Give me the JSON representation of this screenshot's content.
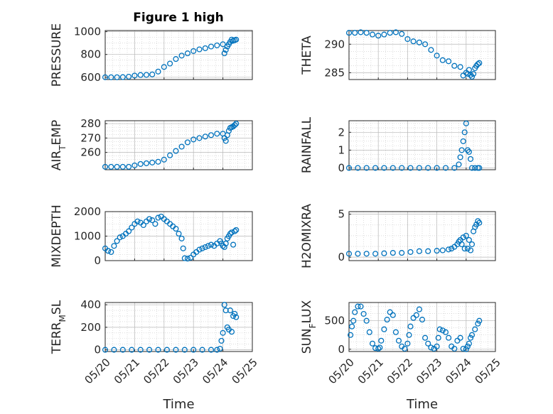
{
  "chart_data": [
    {
      "type": "scatter",
      "title": "Figure 1 high",
      "ylabel": "PRESSURE",
      "xlabel": "",
      "xlim": [
        0,
        5
      ],
      "x_tick_labels": [],
      "ylim": [
        580,
        1010
      ],
      "yticks": [
        600,
        800,
        1000
      ],
      "ytick_labels": [
        "600",
        "800",
        "1000"
      ],
      "grid": true,
      "series": [
        {
          "color": "#0072BD",
          "x": [
            0,
            0.2,
            0.4,
            0.6,
            0.8,
            1.0,
            1.2,
            1.4,
            1.6,
            1.8,
            2.0,
            2.2,
            2.4,
            2.6,
            2.8,
            3.0,
            3.2,
            3.4,
            3.6,
            3.8,
            4.0,
            4.05,
            4.1,
            4.15,
            4.2,
            4.25,
            4.3,
            4.35,
            4.4,
            4.45
          ],
          "y": [
            600,
            600,
            600,
            601,
            605,
            615,
            620,
            621,
            625,
            650,
            690,
            720,
            760,
            790,
            810,
            830,
            845,
            855,
            870,
            880,
            890,
            810,
            840,
            870,
            890,
            910,
            930,
            920,
            925,
            930
          ]
        }
      ]
    },
    {
      "type": "scatter",
      "title": "",
      "ylabel": "THETA",
      "xlabel": "",
      "xlim": [
        0,
        5
      ],
      "x_tick_labels": [],
      "ylim": [
        283.8,
        292.4
      ],
      "yticks": [
        285,
        290
      ],
      "ytick_labels": [
        "285",
        "290"
      ],
      "grid": true,
      "series": [
        {
          "color": "#0072BD",
          "x": [
            0,
            0.2,
            0.4,
            0.6,
            0.8,
            1.0,
            1.2,
            1.4,
            1.6,
            1.8,
            2.0,
            2.2,
            2.4,
            2.6,
            2.8,
            3.0,
            3.2,
            3.4,
            3.6,
            3.8,
            3.9,
            4.0,
            4.05,
            4.1,
            4.15,
            4.2,
            4.25,
            4.3,
            4.35,
            4.4,
            4.45
          ],
          "y": [
            292.0,
            292.0,
            292.1,
            292.0,
            291.7,
            291.5,
            291.7,
            292.0,
            292.1,
            291.8,
            290.9,
            290.5,
            290.3,
            290.0,
            289.0,
            288.0,
            287.2,
            287.0,
            286.2,
            286.0,
            284.5,
            285.0,
            284.8,
            285.5,
            284.6,
            284.3,
            284.8,
            285.8,
            286.2,
            286.5,
            286.7
          ]
        }
      ]
    },
    {
      "type": "scatter",
      "title": "",
      "ylabel": "AIR_TEMP",
      "xlabel": "",
      "xlim": [
        0,
        5
      ],
      "x_tick_labels": [],
      "ylim": [
        248,
        282
      ],
      "yticks": [
        260,
        270,
        280
      ],
      "ytick_labels": [
        "260",
        "270",
        "280"
      ],
      "grid": true,
      "series": [
        {
          "color": "#0072BD",
          "x": [
            0,
            0.2,
            0.4,
            0.6,
            0.8,
            1.0,
            1.2,
            1.4,
            1.6,
            1.8,
            2.0,
            2.2,
            2.4,
            2.6,
            2.8,
            3.0,
            3.2,
            3.4,
            3.6,
            3.8,
            4.0,
            4.05,
            4.1,
            4.15,
            4.2,
            4.25,
            4.3,
            4.35,
            4.4,
            4.45
          ],
          "y": [
            250,
            250,
            250,
            250,
            250,
            251,
            252,
            252.5,
            253,
            253.5,
            255,
            258,
            261,
            264,
            267,
            269,
            270,
            271,
            272,
            273,
            273,
            270,
            268,
            272,
            275,
            277,
            277.5,
            278,
            279,
            280
          ]
        }
      ]
    },
    {
      "type": "scatter",
      "title": "",
      "ylabel": "RAINFALL",
      "xlabel": "",
      "xlim": [
        0,
        5
      ],
      "x_tick_labels": [],
      "ylim": [
        -0.1,
        2.65
      ],
      "yticks": [
        0,
        1,
        2
      ],
      "ytick_labels": [
        "0",
        "1",
        "2"
      ],
      "grid": true,
      "series": [
        {
          "color": "#0072BD",
          "x": [
            0,
            0.3,
            0.6,
            0.9,
            1.2,
            1.5,
            1.8,
            2.1,
            2.4,
            2.7,
            3.0,
            3.3,
            3.6,
            3.75,
            3.8,
            3.85,
            3.9,
            3.95,
            4.0,
            4.05,
            4.1,
            4.15,
            4.2,
            4.3,
            4.4,
            4.45
          ],
          "y": [
            0,
            0,
            0,
            0,
            0,
            0,
            0,
            0,
            0,
            0,
            0,
            0,
            0,
            0.2,
            0.6,
            1.0,
            1.5,
            2.0,
            2.5,
            1.0,
            0.9,
            0.5,
            0,
            0,
            0,
            0
          ]
        }
      ]
    },
    {
      "type": "scatter",
      "title": "",
      "ylabel": "MIXDEPTH",
      "xlabel": "",
      "xlim": [
        0,
        5
      ],
      "x_tick_labels": [],
      "ylim": [
        0,
        2000
      ],
      "yticks": [
        0,
        1000,
        2000
      ],
      "ytick_labels": [
        "0",
        "1000",
        "2000"
      ],
      "grid": true,
      "series": [
        {
          "color": "#0072BD",
          "x": [
            0,
            0.1,
            0.2,
            0.3,
            0.4,
            0.5,
            0.6,
            0.7,
            0.8,
            0.9,
            1.0,
            1.1,
            1.2,
            1.3,
            1.4,
            1.5,
            1.6,
            1.7,
            1.8,
            1.9,
            2.0,
            2.1,
            2.2,
            2.3,
            2.4,
            2.5,
            2.6,
            2.65,
            2.7,
            2.8,
            2.9,
            3.0,
            3.1,
            3.2,
            3.3,
            3.4,
            3.5,
            3.6,
            3.7,
            3.8,
            3.9,
            3.95,
            4.0,
            4.05,
            4.1,
            4.15,
            4.2,
            4.25,
            4.3,
            4.35,
            4.4,
            4.45
          ],
          "y": [
            500,
            400,
            350,
            600,
            800,
            950,
            1000,
            1100,
            1200,
            1350,
            1500,
            1600,
            1550,
            1450,
            1600,
            1700,
            1650,
            1500,
            1750,
            1800,
            1700,
            1600,
            1500,
            1400,
            1300,
            1100,
            900,
            500,
            100,
            80,
            120,
            250,
            350,
            450,
            500,
            550,
            600,
            650,
            600,
            700,
            800,
            700,
            600,
            550,
            700,
            900,
            1000,
            1100,
            1150,
            650,
            1200,
            1250
          ]
        }
      ]
    },
    {
      "type": "scatter",
      "title": "",
      "ylabel": "H2OMIXRA",
      "xlabel": "",
      "xlim": [
        0,
        5
      ],
      "x_tick_labels": [],
      "ylim": [
        -0.4,
        5.3
      ],
      "yticks": [
        0,
        5
      ],
      "ytick_labels": [
        "0",
        "5"
      ],
      "grid": true,
      "series": [
        {
          "color": "#0072BD",
          "x": [
            0,
            0.3,
            0.6,
            0.9,
            1.2,
            1.5,
            1.8,
            2.1,
            2.4,
            2.7,
            3.0,
            3.2,
            3.4,
            3.5,
            3.6,
            3.7,
            3.75,
            3.8,
            3.85,
            3.9,
            3.95,
            4.0,
            4.05,
            4.1,
            4.15,
            4.2,
            4.25,
            4.3,
            4.35,
            4.4,
            4.45
          ],
          "y": [
            0.4,
            0.4,
            0.4,
            0.4,
            0.45,
            0.5,
            0.5,
            0.6,
            0.7,
            0.7,
            0.75,
            0.8,
            0.9,
            1.0,
            1.2,
            1.5,
            1.8,
            2.0,
            1.5,
            2.3,
            1.0,
            2.5,
            1.0,
            2.0,
            0.8,
            1.5,
            3.0,
            3.5,
            3.8,
            4.2,
            4.0
          ]
        }
      ]
    },
    {
      "type": "scatter",
      "title": "",
      "ylabel": "TERR_MSL",
      "xlabel": "Time",
      "xlim": [
        0,
        5
      ],
      "x_tick_labels": [
        "05/20",
        "05/21",
        "05/22",
        "05/23",
        "05/24",
        "05/25"
      ],
      "ylim": [
        -15,
        420
      ],
      "yticks": [
        0,
        200,
        400
      ],
      "ytick_labels": [
        "0",
        "200",
        "400"
      ],
      "grid": true,
      "series": [
        {
          "color": "#0072BD",
          "x": [
            0,
            0.3,
            0.6,
            0.9,
            1.2,
            1.5,
            1.8,
            2.1,
            2.4,
            2.7,
            3.0,
            3.3,
            3.6,
            3.8,
            3.9,
            3.95,
            4.0,
            4.05,
            4.1,
            4.15,
            4.2,
            4.25,
            4.3,
            4.35,
            4.4,
            4.45
          ],
          "y": [
            0,
            0,
            0,
            0,
            0,
            0,
            0,
            0,
            0,
            0,
            0,
            0,
            0,
            0,
            10,
            80,
            150,
            400,
            350,
            200,
            180,
            350,
            160,
            300,
            320,
            290
          ]
        }
      ]
    },
    {
      "type": "scatter",
      "title": "",
      "ylabel": "SUN_FLUX",
      "xlabel": "Time",
      "xlim": [
        0,
        5
      ],
      "x_tick_labels": [
        "05/20",
        "05/21",
        "05/22",
        "05/23",
        "05/24",
        "05/25"
      ],
      "ylim": [
        -40,
        820
      ],
      "yticks": [
        0,
        500
      ],
      "ytick_labels": [
        "0",
        "500"
      ],
      "grid": true,
      "series": [
        {
          "color": "#0072BD",
          "x": [
            0.05,
            0.1,
            0.15,
            0.2,
            0.3,
            0.4,
            0.5,
            0.6,
            0.7,
            0.8,
            0.9,
            1.0,
            1.05,
            1.1,
            1.2,
            1.3,
            1.4,
            1.5,
            1.6,
            1.7,
            1.8,
            1.9,
            2.0,
            2.05,
            2.1,
            2.2,
            2.3,
            2.4,
            2.5,
            2.6,
            2.7,
            2.8,
            2.9,
            3.0,
            3.05,
            3.1,
            3.2,
            3.3,
            3.4,
            3.5,
            3.6,
            3.7,
            3.8,
            3.9,
            4.0,
            4.05,
            4.1,
            4.15,
            4.2,
            4.3,
            4.4,
            4.45
          ],
          "y": [
            250,
            400,
            500,
            650,
            750,
            750,
            620,
            500,
            300,
            100,
            20,
            10,
            30,
            150,
            350,
            520,
            650,
            600,
            300,
            150,
            50,
            10,
            100,
            250,
            400,
            550,
            600,
            700,
            520,
            200,
            100,
            30,
            10,
            50,
            200,
            350,
            330,
            300,
            200,
            50,
            10,
            150,
            200,
            10,
            0,
            50,
            100,
            200,
            250,
            350,
            450,
            500
          ]
        }
      ]
    }
  ]
}
